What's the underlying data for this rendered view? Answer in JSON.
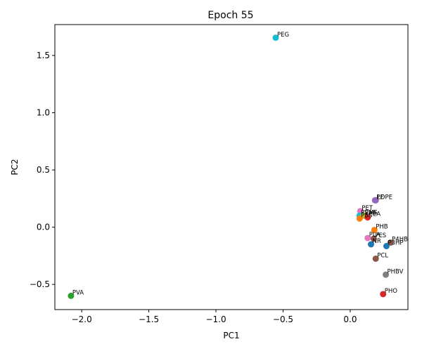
{
  "chart_data": {
    "type": "scatter",
    "title": "Epoch 55",
    "xlabel": "PC1",
    "ylabel": "PC2",
    "xlim": [
      -2.2,
      0.43
    ],
    "ylim": [
      -0.72,
      1.77
    ],
    "xticks": [
      -2.0,
      -1.5,
      -1.0,
      -0.5,
      0.0
    ],
    "xtick_labels": [
      "−2.0",
      "−1.5",
      "−1.0",
      "−0.5",
      "0.0"
    ],
    "yticks": [
      -0.5,
      0.0,
      0.5,
      1.0,
      1.5
    ],
    "ytick_labels": [
      "−0.5",
      "0.0",
      "0.5",
      "1.0",
      "1.5"
    ],
    "grid": false,
    "points": [
      {
        "label": "PEG",
        "x": -0.555,
        "y": 1.655,
        "color": "#17becf"
      },
      {
        "label": "PE",
        "x": 0.185,
        "y": 0.235,
        "color": "#9467bd"
      },
      {
        "label": "LDPE",
        "x": 0.19,
        "y": 0.235,
        "color": "#9467bd"
      },
      {
        "label": "PET",
        "x": 0.075,
        "y": 0.14,
        "color": "#e377c2"
      },
      {
        "label": "PVAS",
        "x": 0.07,
        "y": 0.1,
        "color": "#17becf"
      },
      {
        "label": "PMS",
        "x": 0.1,
        "y": 0.1,
        "color": "#bcbd22"
      },
      {
        "label": "PEA",
        "x": 0.13,
        "y": 0.085,
        "color": "#d62728"
      },
      {
        "label": "PBS",
        "x": 0.07,
        "y": 0.075,
        "color": "#ff7f0e"
      },
      {
        "label": "PHB",
        "x": 0.18,
        "y": -0.025,
        "color": "#ff7f0e"
      },
      {
        "label": "PLA",
        "x": 0.13,
        "y": -0.095,
        "color": "#e377c2"
      },
      {
        "label": "PES",
        "x": 0.175,
        "y": -0.1,
        "color": "#8c564b"
      },
      {
        "label": "NR",
        "x": 0.155,
        "y": -0.15,
        "color": "#1f77b4"
      },
      {
        "label": "P4HB",
        "x": 0.3,
        "y": -0.135,
        "color": "#8c564b"
      },
      {
        "label": "P3HP",
        "x": 0.27,
        "y": -0.165,
        "color": "#1f77b4"
      },
      {
        "label": "PCL",
        "x": 0.19,
        "y": -0.275,
        "color": "#8c564b"
      },
      {
        "label": "PHBV",
        "x": 0.265,
        "y": -0.415,
        "color": "#7f7f7f"
      },
      {
        "label": "PHO",
        "x": 0.245,
        "y": -0.585,
        "color": "#d62728"
      },
      {
        "label": "PVA",
        "x": -2.08,
        "y": -0.6,
        "color": "#2ca02c"
      }
    ]
  }
}
